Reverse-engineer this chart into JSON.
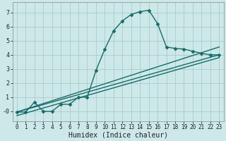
{
  "title": "",
  "xlabel": "Humidex (Indice chaleur)",
  "background_color": "#cce8e8",
  "grid_color": "#aacccc",
  "line_color": "#1a6b6b",
  "xlim": [
    -0.5,
    23.5
  ],
  "ylim": [
    -0.7,
    7.7
  ],
  "xticks": [
    0,
    1,
    2,
    3,
    4,
    5,
    6,
    7,
    8,
    9,
    10,
    11,
    12,
    13,
    14,
    15,
    16,
    17,
    18,
    19,
    20,
    21,
    22,
    23
  ],
  "yticks": [
    0,
    1,
    2,
    3,
    4,
    5,
    6,
    7
  ],
  "ytick_labels": [
    "  0",
    "  1",
    "  2",
    "  3",
    "  4",
    "  5",
    "  6",
    "  7"
  ],
  "line1_x": [
    0,
    1,
    2,
    3,
    4,
    5,
    6,
    7,
    8,
    9,
    10,
    11,
    12,
    13,
    14,
    15,
    16,
    17,
    18,
    19,
    20,
    21,
    22,
    23
  ],
  "line1_y": [
    -0.05,
    -0.05,
    0.65,
    0.0,
    0.0,
    0.5,
    0.5,
    1.0,
    1.0,
    2.9,
    4.4,
    5.7,
    6.4,
    6.85,
    7.05,
    7.15,
    6.2,
    4.55,
    4.45,
    4.4,
    4.25,
    4.1,
    4.0,
    4.0
  ],
  "line2_x": [
    0,
    23
  ],
  "line2_y": [
    -0.05,
    4.55
  ],
  "line3_x": [
    0,
    23
  ],
  "line3_y": [
    -0.05,
    4.0
  ],
  "line4_x": [
    0,
    23
  ],
  "line4_y": [
    -0.3,
    3.8
  ],
  "marker": "D",
  "markersize": 2.5,
  "linewidth": 1.0
}
